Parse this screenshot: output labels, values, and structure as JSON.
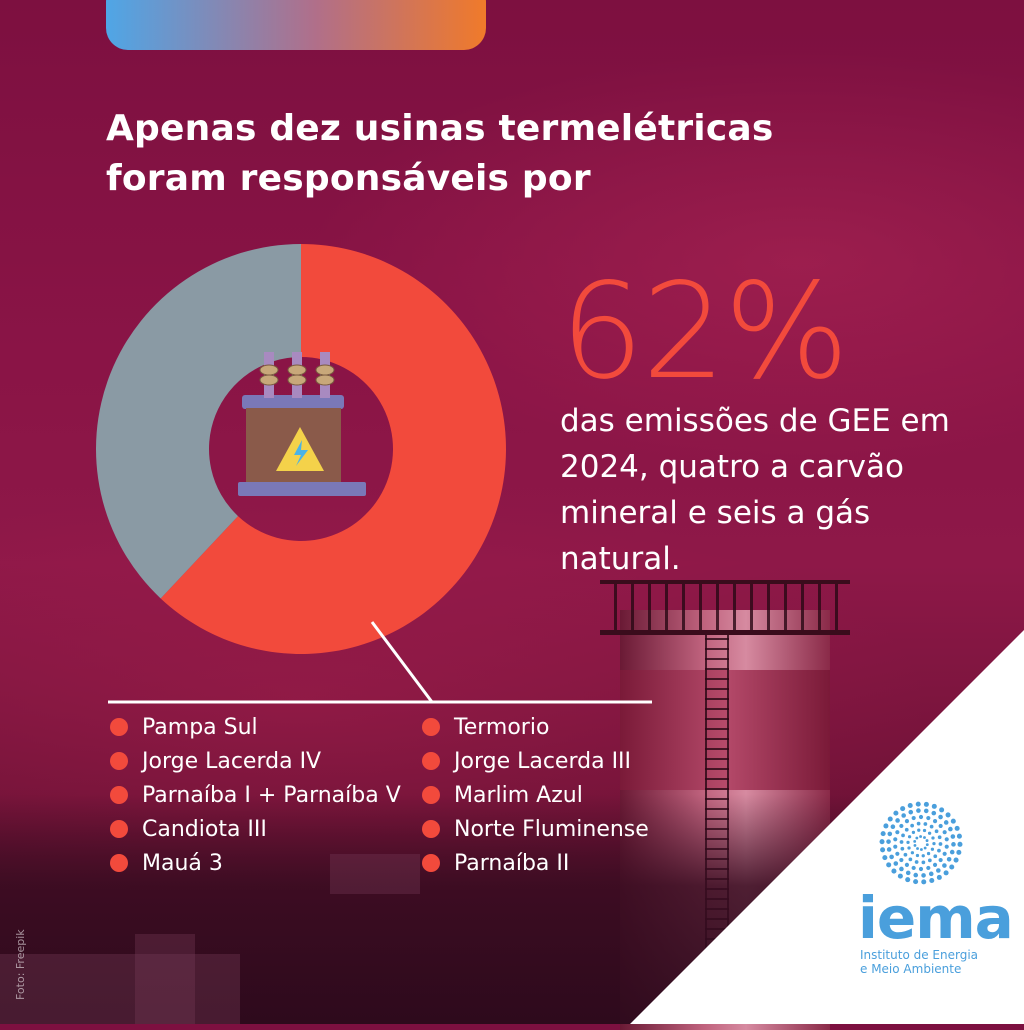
{
  "headline": {
    "line1": "Apenas dez usinas termelétricas",
    "line2": "foram responsáveis por"
  },
  "highlight": {
    "value": "62%",
    "description": "das emissões de GEE em 2024, quatro a carvão mineral e seis a gás natural."
  },
  "chart_data": {
    "type": "pie",
    "title": "",
    "slices": [
      {
        "label": "",
        "value": 62,
        "color": "#f24a3c"
      },
      {
        "label": "",
        "value": 38,
        "color": "#8a9aa4"
      }
    ],
    "center_icon": "transformer-icon",
    "legend_placement": "bottom"
  },
  "legend": {
    "dot_color": "#f24a3c",
    "col1": [
      "Pampa Sul",
      "Jorge Lacerda IV",
      "Parnaíba I + Parnaíba V",
      "Candiota III",
      "Mauá 3"
    ],
    "col2": [
      "Termorio",
      "Jorge Lacerda III",
      "Marlim Azul",
      "Norte Fluminense",
      "Parnaíba II"
    ]
  },
  "credit": "Foto: Freepik",
  "logo": {
    "word": "iema",
    "subtitle_line1": "Instituto de Energia",
    "subtitle_line2": "e Meio Ambiente",
    "color": "#4a9fdc"
  }
}
